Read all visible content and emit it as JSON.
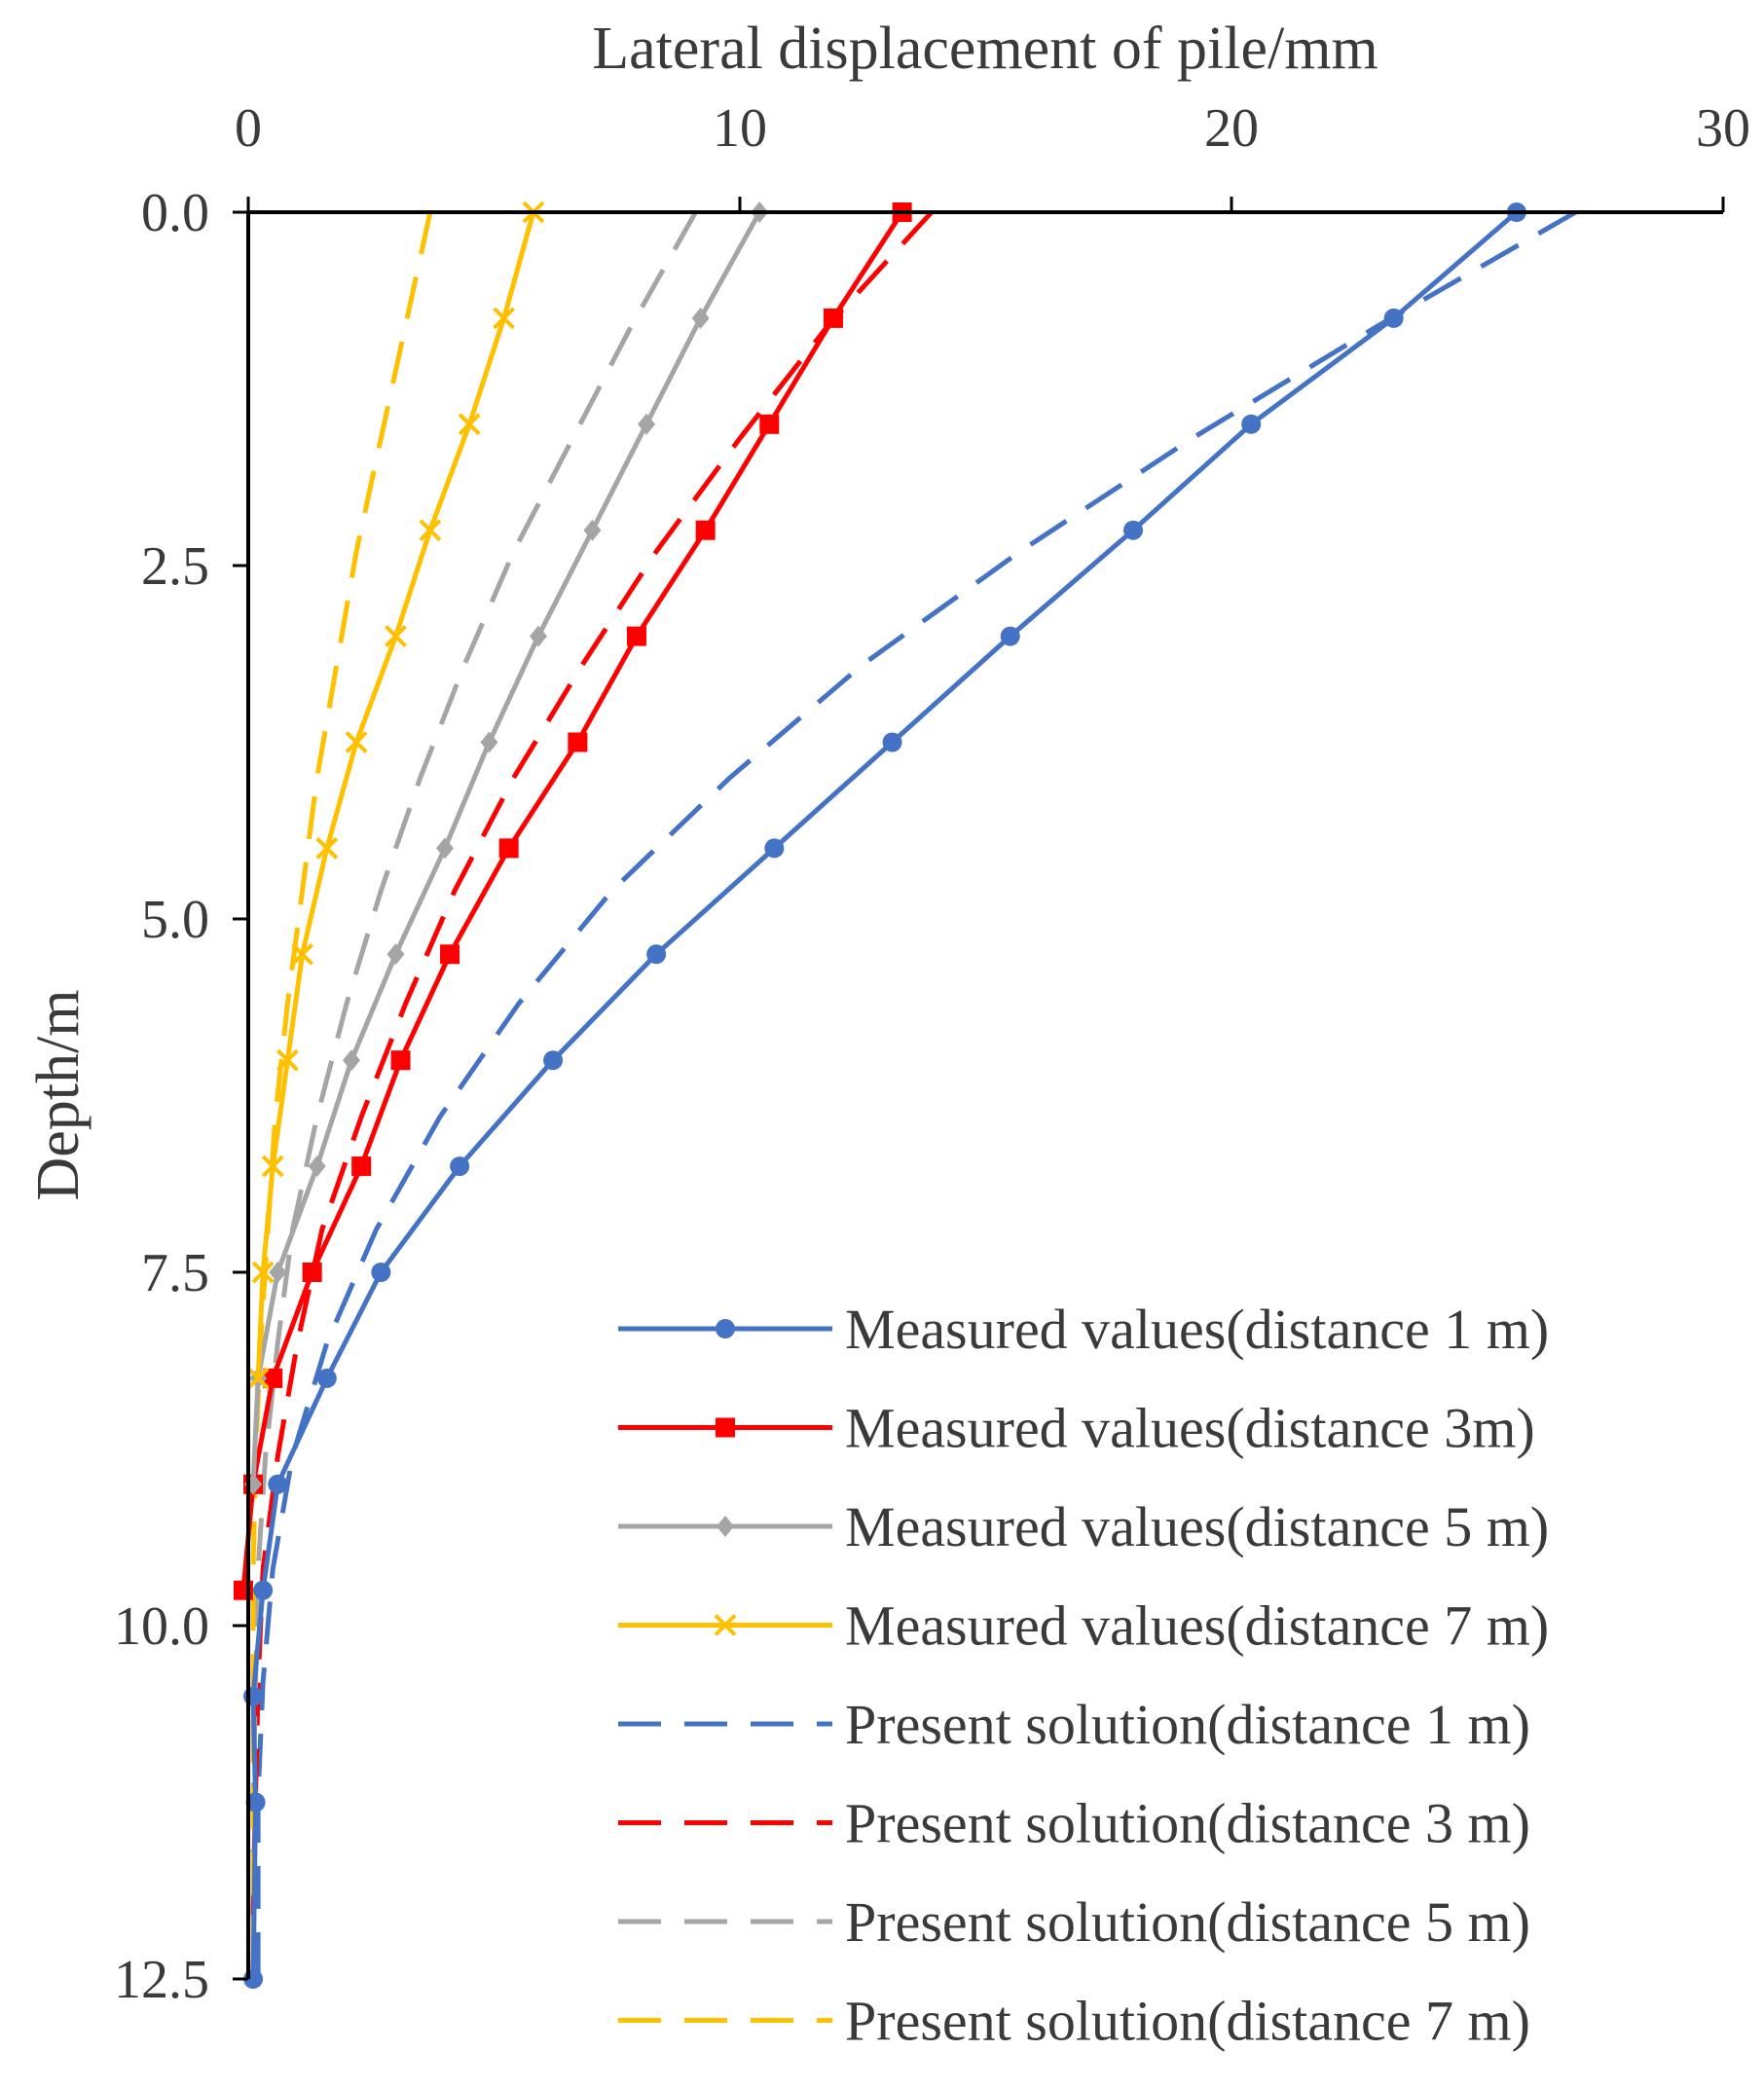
{
  "chart_data": {
    "type": "line",
    "xlabel": "Lateral displacement of pile/mm",
    "ylabel": "Depth/m",
    "xlim": [
      0,
      30
    ],
    "ylim": [
      0,
      12.5
    ],
    "x_axis_position": "top",
    "y_axis_inverted": true,
    "x_ticks": [
      0,
      10,
      20,
      30
    ],
    "x_tick_labels": [
      "0",
      "10",
      "20",
      "30"
    ],
    "y_ticks": [
      0,
      2.5,
      5,
      7.5,
      10,
      12.5
    ],
    "y_tick_labels": [
      "0.0",
      "2.5",
      "5.0",
      "7.5",
      "10.0",
      "12.5"
    ],
    "legend_position": "bottom-right",
    "series": [
      {
        "name": "Measured values(distance 1 m)",
        "color": "#4472C4",
        "style": "solid",
        "marker": "circle",
        "depth": [
          0,
          0.75,
          1.5,
          2.25,
          3.0,
          3.75,
          4.5,
          5.25,
          6.0,
          6.75,
          7.5,
          8.25,
          9.0,
          9.75,
          10.5,
          11.25,
          12.5
        ],
        "displacement": [
          25.8,
          23.3,
          20.4,
          18.0,
          15.5,
          13.1,
          10.7,
          8.3,
          6.2,
          4.3,
          2.7,
          1.6,
          0.6,
          0.3,
          0.1,
          0.15,
          0.1
        ]
      },
      {
        "name": "Measured values(distance 3m)",
        "color": "#FF0000",
        "style": "solid",
        "marker": "square",
        "depth": [
          0,
          0.75,
          1.5,
          2.25,
          3.0,
          3.75,
          4.5,
          5.25,
          6.0,
          6.75,
          7.5,
          8.25,
          9.0,
          9.75
        ],
        "displacement": [
          13.3,
          11.9,
          10.6,
          9.3,
          7.9,
          6.7,
          5.3,
          4.1,
          3.1,
          2.3,
          1.3,
          0.5,
          0.1,
          -0.1
        ]
      },
      {
        "name": "Measured values(distance 5 m)",
        "color": "#A5A5A5",
        "style": "solid",
        "marker": "diamond",
        "depth": [
          0,
          0.75,
          1.5,
          2.25,
          3.0,
          3.75,
          4.5,
          5.25,
          6.0,
          6.75,
          7.5,
          8.25,
          9.0
        ],
        "displacement": [
          10.4,
          9.2,
          8.1,
          7.0,
          5.9,
          4.9,
          4.0,
          3.0,
          2.1,
          1.4,
          0.6,
          0.2,
          0.1
        ]
      },
      {
        "name": "Measured values(distance 7 m)",
        "color": "#FFC000",
        "style": "solid",
        "marker": "x",
        "depth": [
          0,
          0.75,
          1.5,
          2.25,
          3.0,
          3.75,
          4.5,
          5.25,
          6.0,
          6.75,
          7.5,
          8.25
        ],
        "displacement": [
          5.8,
          5.2,
          4.5,
          3.7,
          3.0,
          2.2,
          1.6,
          1.1,
          0.8,
          0.5,
          0.3,
          0.2
        ]
      },
      {
        "name": "Present solution(distance 1 m)",
        "color": "#4472C4",
        "style": "dashed",
        "marker": "none",
        "depth": [
          0,
          0.8,
          1.6,
          2.4,
          3.2,
          4.0,
          4.8,
          5.6,
          6.4,
          7.2,
          8.0,
          8.8,
          9.6,
          10.4,
          11.2,
          12.0,
          12.5
        ],
        "displacement": [
          27.0,
          23.0,
          19.2,
          15.7,
          12.5,
          9.8,
          7.4,
          5.5,
          3.9,
          2.6,
          1.6,
          0.9,
          0.5,
          0.3,
          0.2,
          0.2,
          0.2
        ]
      },
      {
        "name": "Present solution(distance 3 m)",
        "color": "#FF0000",
        "style": "dashed",
        "marker": "none",
        "depth": [
          0,
          0.8,
          1.6,
          2.4,
          3.2,
          4.0,
          4.8,
          5.6,
          6.4,
          7.2,
          8.0,
          8.8,
          9.6,
          10.4,
          11.2,
          12.0,
          12.5
        ],
        "displacement": [
          13.9,
          11.8,
          10.0,
          8.3,
          6.8,
          5.4,
          4.2,
          3.2,
          2.3,
          1.5,
          1.0,
          0.6,
          0.3,
          0.2,
          0.15,
          0.1,
          0.1
        ]
      },
      {
        "name": "Present solution(distance 5 m)",
        "color": "#A5A5A5",
        "style": "dashed",
        "marker": "none",
        "depth": [
          0,
          0.8,
          1.6,
          2.4,
          3.2,
          4.0,
          4.8,
          5.6,
          6.4,
          7.2,
          8.0,
          8.8,
          9.6,
          10.4,
          11.2,
          12.0,
          12.5
        ],
        "displacement": [
          9.1,
          7.8,
          6.6,
          5.4,
          4.4,
          3.5,
          2.7,
          2.0,
          1.4,
          0.9,
          0.6,
          0.35,
          0.2,
          0.15,
          0.1,
          0.1,
          0.1
        ]
      },
      {
        "name": "Present solution(distance 7 m)",
        "color": "#FFC000",
        "style": "dashed",
        "marker": "none",
        "depth": [
          0,
          0.8,
          1.6,
          2.4,
          3.2,
          4.0,
          4.8,
          5.6,
          6.4,
          7.2,
          8.0,
          8.8,
          9.6,
          10.4,
          11.2,
          12.0,
          12.5
        ],
        "displacement": [
          3.7,
          3.2,
          2.7,
          2.2,
          1.8,
          1.4,
          1.1,
          0.8,
          0.55,
          0.4,
          0.25,
          0.15,
          0.1,
          0.1,
          0.1,
          0.1,
          0.1
        ]
      }
    ]
  }
}
